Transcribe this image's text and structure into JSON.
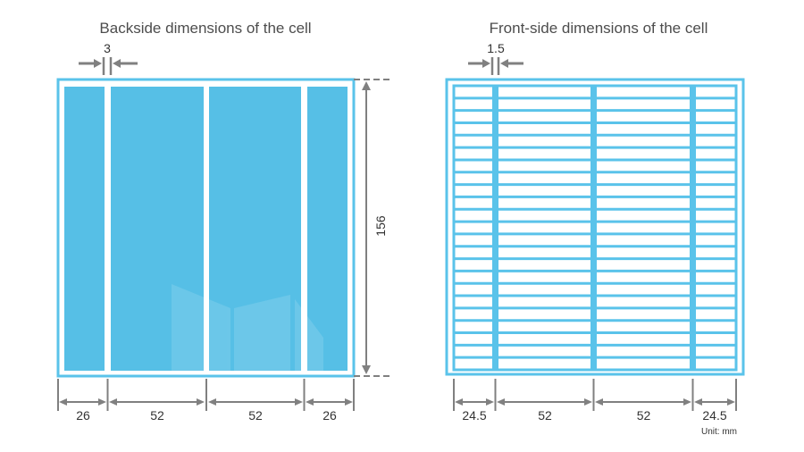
{
  "back": {
    "title": "Backside dimensions of the cell",
    "gap_label": "3",
    "height_label": "156",
    "widths": [
      "26",
      "52",
      "52",
      "26"
    ]
  },
  "front": {
    "title": "Front-side dimensions of the cell",
    "busbar_label": "1.5",
    "widths": [
      "24.5",
      "52",
      "52",
      "24.5"
    ],
    "finger_rows": 23
  },
  "unit_label": "Unit: mm",
  "colors": {
    "cell_blue": "#56BFE6",
    "frame_blue": "#5AC3EA",
    "dim_gray": "#808080"
  }
}
